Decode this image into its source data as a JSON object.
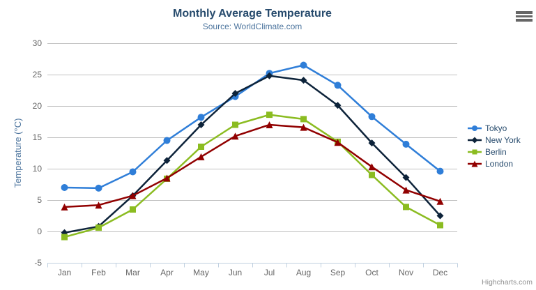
{
  "chart_data": {
    "type": "line",
    "title": "Monthly Average Temperature",
    "subtitle": "Source: WorldClimate.com",
    "xlabel": "",
    "ylabel": "Temperature (°C)",
    "ylim": [
      -5,
      30
    ],
    "ytick_step": 5,
    "grid": true,
    "legend_position": "right",
    "credits": "Highcharts.com",
    "categories": [
      "Jan",
      "Feb",
      "Mar",
      "Apr",
      "May",
      "Jun",
      "Jul",
      "Aug",
      "Sep",
      "Oct",
      "Nov",
      "Dec"
    ],
    "series": [
      {
        "name": "Tokyo",
        "color": "#2f7ed8",
        "marker": "circle",
        "values": [
          7.0,
          6.9,
          9.5,
          14.5,
          18.2,
          21.5,
          25.2,
          26.5,
          23.3,
          18.3,
          13.9,
          9.6
        ]
      },
      {
        "name": "New York",
        "color": "#0d233a",
        "marker": "diamond",
        "values": [
          -0.2,
          0.8,
          5.7,
          11.3,
          17.0,
          22.0,
          24.8,
          24.1,
          20.1,
          14.1,
          8.6,
          2.5
        ]
      },
      {
        "name": "Berlin",
        "color": "#8bbc21",
        "marker": "square",
        "values": [
          -0.9,
          0.6,
          3.5,
          8.4,
          13.5,
          17.0,
          18.6,
          17.9,
          14.3,
          9.0,
          3.9,
          1.0
        ]
      },
      {
        "name": "London",
        "color": "#910000",
        "marker": "triangle",
        "values": [
          3.9,
          4.2,
          5.7,
          8.5,
          11.9,
          15.2,
          17.0,
          16.6,
          14.2,
          10.3,
          6.6,
          4.8
        ]
      }
    ]
  },
  "colors": {
    "title": "#274b6d",
    "subtitle": "#4d759e",
    "axis_label": "#666666",
    "axis_title": "#4d759e",
    "gridline": "#c0c0c0",
    "axis_line": "#c0d0e0",
    "tick_mark": "#c0d0e0",
    "legend_text": "#274b6d",
    "credits": "#909090",
    "menu_icon": "#666666",
    "background": "#ffffff"
  },
  "icons": {
    "context_menu": "hamburger-icon"
  }
}
